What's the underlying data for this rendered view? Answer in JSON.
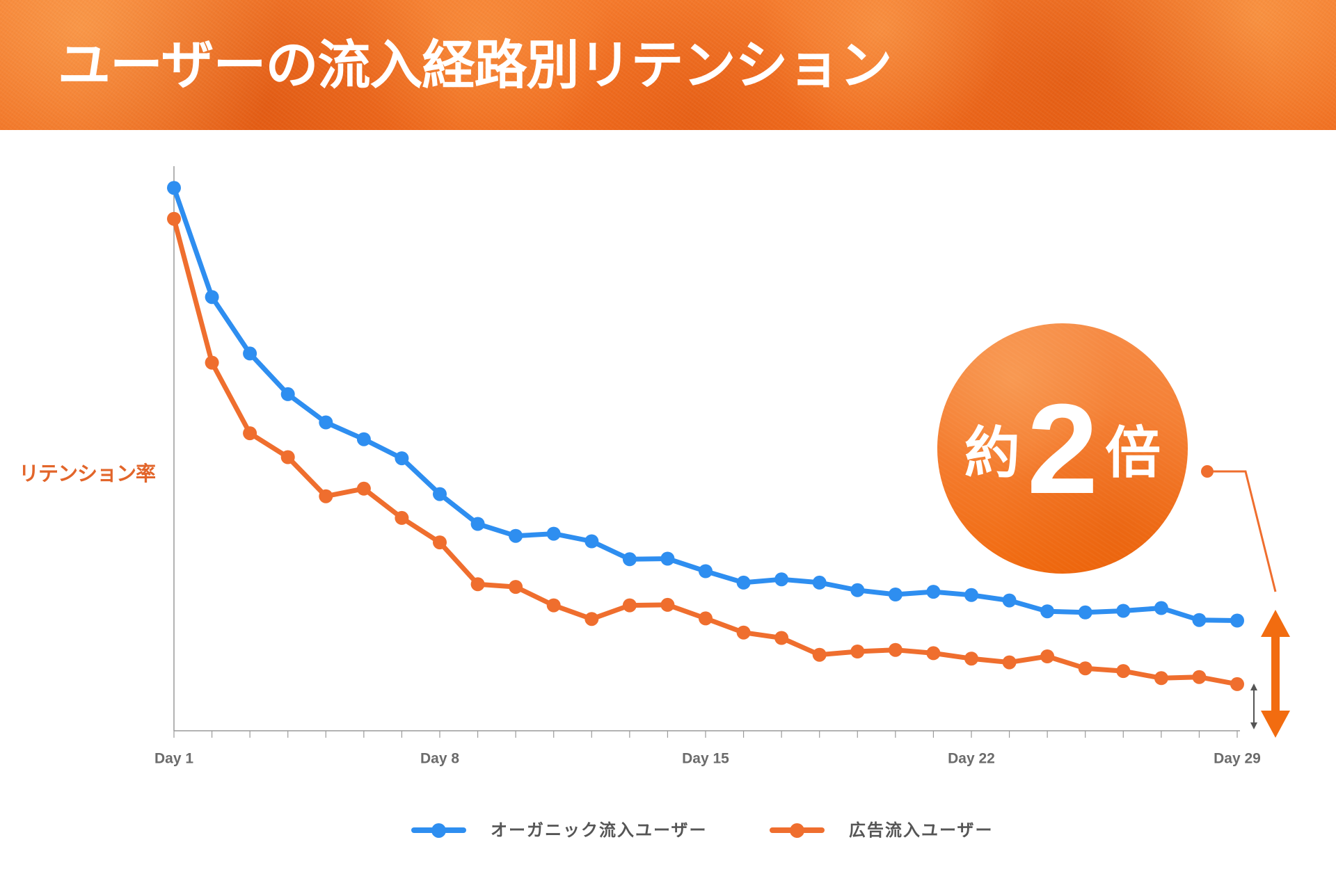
{
  "colors": {
    "header": "#f26d22",
    "organic": "#2e8ef0",
    "ads": "#ef6e2e",
    "axis": "#9a9a9a",
    "y_label": "#e2652a",
    "callout": "#f47a2c"
  },
  "chart_data": {
    "type": "line",
    "title": "ユーザーの流入経路別リテンション",
    "ylabel": "リテンション率",
    "x": [
      1,
      2,
      3,
      4,
      5,
      6,
      7,
      8,
      9,
      10,
      11,
      12,
      13,
      14,
      15,
      16,
      17,
      18,
      19,
      20,
      21,
      22,
      23,
      24,
      25,
      26,
      27,
      28,
      29
    ],
    "xlim": [
      1,
      29
    ],
    "ylim": [
      0,
      104
    ],
    "xticks": [
      1,
      8,
      15,
      22,
      29
    ],
    "xtick_labels": [
      "Day 1",
      "Day 8",
      "Day 15",
      "Day 22",
      "Day 29"
    ],
    "grid": false,
    "legend": "bottom",
    "series": [
      {
        "name": "オーガニック流入ユーザー",
        "color": "#2e8ef0",
        "values": [
          100.0,
          79.9,
          69.5,
          62.0,
          56.8,
          53.7,
          50.2,
          43.6,
          38.1,
          35.9,
          36.3,
          34.9,
          31.6,
          31.7,
          29.4,
          27.3,
          27.9,
          27.3,
          25.9,
          25.1,
          25.6,
          25.0,
          24.0,
          22.0,
          21.8,
          22.1,
          22.6,
          20.4,
          20.3
        ]
      },
      {
        "name": "広告流入ユーザー",
        "color": "#ef6e2e",
        "values": [
          94.3,
          67.8,
          54.8,
          50.4,
          43.2,
          44.6,
          39.2,
          34.7,
          27.0,
          26.5,
          23.1,
          20.6,
          23.1,
          23.2,
          20.7,
          18.1,
          17.1,
          14.0,
          14.6,
          14.9,
          14.3,
          13.3,
          12.6,
          13.7,
          11.5,
          11.0,
          9.7,
          9.9,
          8.6
        ]
      }
    ]
  },
  "callout": {
    "prefix": "約",
    "number": "2",
    "suffix": "倍"
  }
}
